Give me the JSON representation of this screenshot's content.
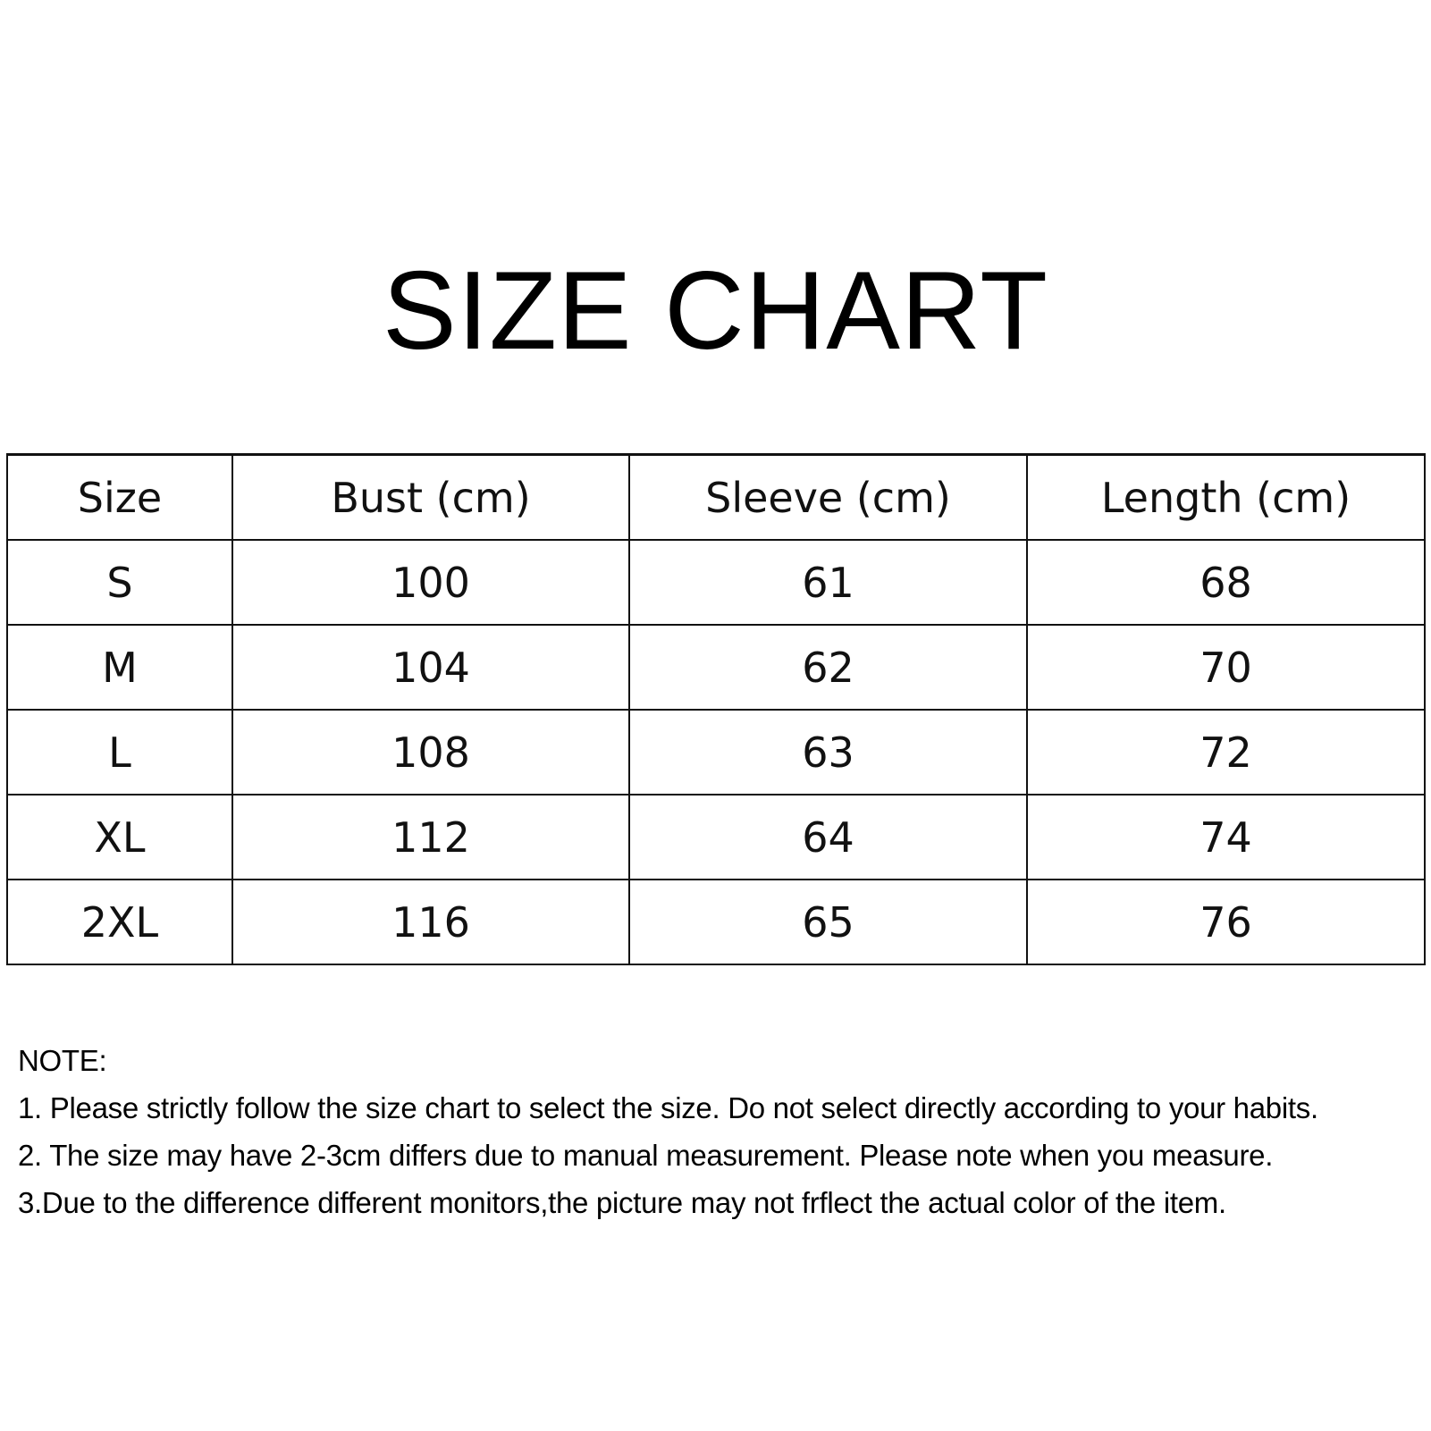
{
  "title": "SIZE CHART",
  "table": {
    "headers": [
      "Size",
      "Bust (cm)",
      "Sleeve (cm)",
      "Length (cm)"
    ],
    "rows": [
      [
        "S",
        "100",
        "61",
        "68"
      ],
      [
        "M",
        "104",
        "62",
        "70"
      ],
      [
        "L",
        "108",
        "63",
        "72"
      ],
      [
        "XL",
        "112",
        "64",
        "74"
      ],
      [
        "2XL",
        "116",
        "65",
        "76"
      ]
    ]
  },
  "notes": {
    "heading": "NOTE:",
    "items": [
      "1. Please strictly follow the size chart to select the size. Do not select directly according to your habits.",
      "2. The size may have 2-3cm differs due to manual measurement. Please note when you measure.",
      "3.Due to the difference different monitors,the picture may not frflect the actual color of the item."
    ]
  }
}
